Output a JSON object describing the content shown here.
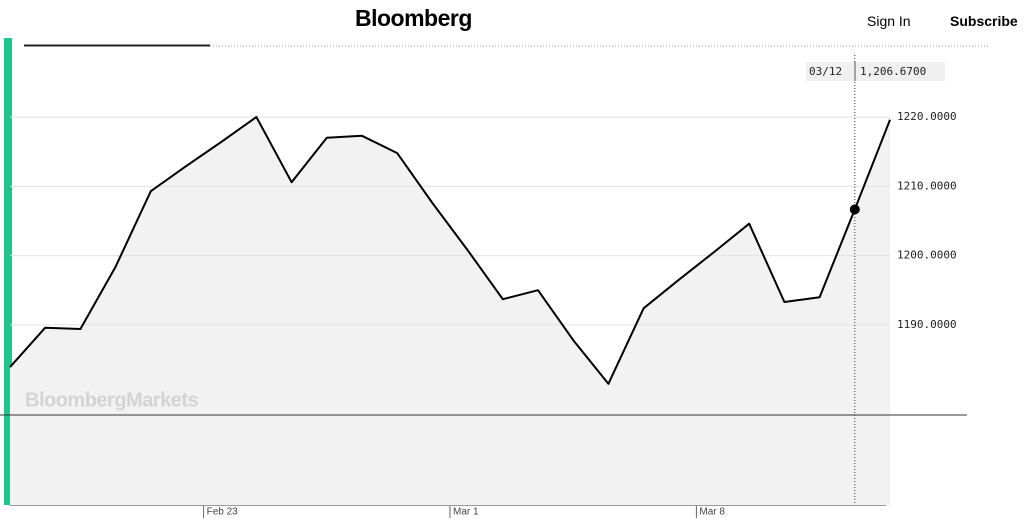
{
  "header": {
    "logo": "Bloomberg",
    "sign_in": "Sign In",
    "subscribe": "Subscribe"
  },
  "chart_data": {
    "type": "area",
    "watermark": "BloombergMarkets",
    "x": [
      0,
      1,
      2,
      3,
      4,
      5,
      6,
      7,
      8,
      9,
      10,
      11,
      12,
      13,
      14,
      15,
      16,
      17,
      18,
      19,
      20,
      21,
      22,
      23,
      24,
      25
    ],
    "values": [
      1183.9,
      1189.6,
      1189.4,
      1198.4,
      1209.3,
      1212.9,
      1216.4,
      1220.0,
      1210.6,
      1217.0,
      1217.3,
      1214.8,
      1207.6,
      1200.8,
      1193.7,
      1195.0,
      1187.8,
      1181.5,
      1192.4,
      1196.5,
      1200.5,
      1204.6,
      1193.3,
      1194.0,
      1206.67,
      1219.6
    ],
    "color": "#000000",
    "fill": "#f2f2f2",
    "accent_color": "#1fc48c",
    "xlim": [
      0,
      25
    ],
    "ylim": [
      1164,
      1230.4
    ],
    "xticks": [
      {
        "value": 5.5,
        "label": "Feb 23"
      },
      {
        "value": 12.5,
        "label": "Mar 1"
      },
      {
        "value": 19.5,
        "label": "Mar 8"
      }
    ],
    "yticks": [
      {
        "value": 1190,
        "label": "1190.0000"
      },
      {
        "value": 1200,
        "label": "1200.0000"
      },
      {
        "value": 1210,
        "label": "1210.0000"
      },
      {
        "value": 1220,
        "label": "1220.0000"
      }
    ],
    "grid": true,
    "reference_line": 1177,
    "tooltip": {
      "x": 24,
      "date": "03/12",
      "value": 1206.67,
      "value_label": "1,206.6700"
    }
  }
}
